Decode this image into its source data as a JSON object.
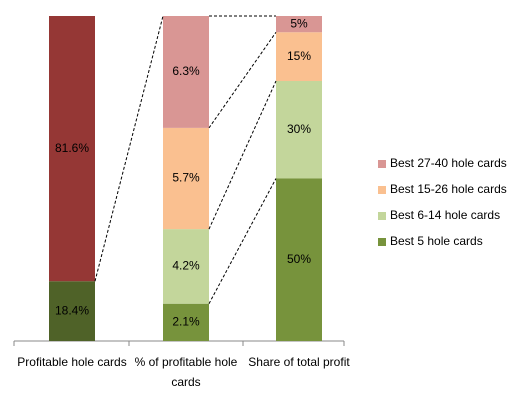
{
  "chart_data": {
    "type": "bar",
    "stacked": true,
    "categories": [
      "Profitable hole cards",
      "% of profitable hole cards",
      "Share of total profit"
    ],
    "bars": [
      {
        "segments": [
          {
            "value": 18.4,
            "value_label": "18.4%",
            "color": "#4f6228"
          },
          {
            "value": 81.6,
            "value_label": "81.6%",
            "color": "#953735"
          }
        ]
      },
      {
        "segments": [
          {
            "value": 2.1,
            "value_label": "2.1%",
            "color": "#77933c"
          },
          {
            "value": 4.2,
            "value_label": "4.2%",
            "color": "#c3d69b"
          },
          {
            "value": 5.7,
            "value_label": "5.7%",
            "color": "#fac090"
          },
          {
            "value": 6.3,
            "value_label": "6.3%",
            "color": "#d99694"
          }
        ]
      },
      {
        "segments": [
          {
            "value": 50,
            "value_label": "50%",
            "color": "#77933c"
          },
          {
            "value": 30,
            "value_label": "30%",
            "color": "#c3d69b"
          },
          {
            "value": 15,
            "value_label": "15%",
            "color": "#fac090"
          },
          {
            "value": 5,
            "value_label": "5%",
            "color": "#d99694"
          }
        ]
      }
    ],
    "legend": [
      {
        "name": "Best 27-40 hole cards",
        "color": "#d99694"
      },
      {
        "name": "Best 15-26 hole cards",
        "color": "#fac090"
      },
      {
        "name": "Best 6-14 hole cards",
        "color": "#c3d69b"
      },
      {
        "name": "Best 5 hole cards",
        "color": "#77933c"
      }
    ]
  }
}
